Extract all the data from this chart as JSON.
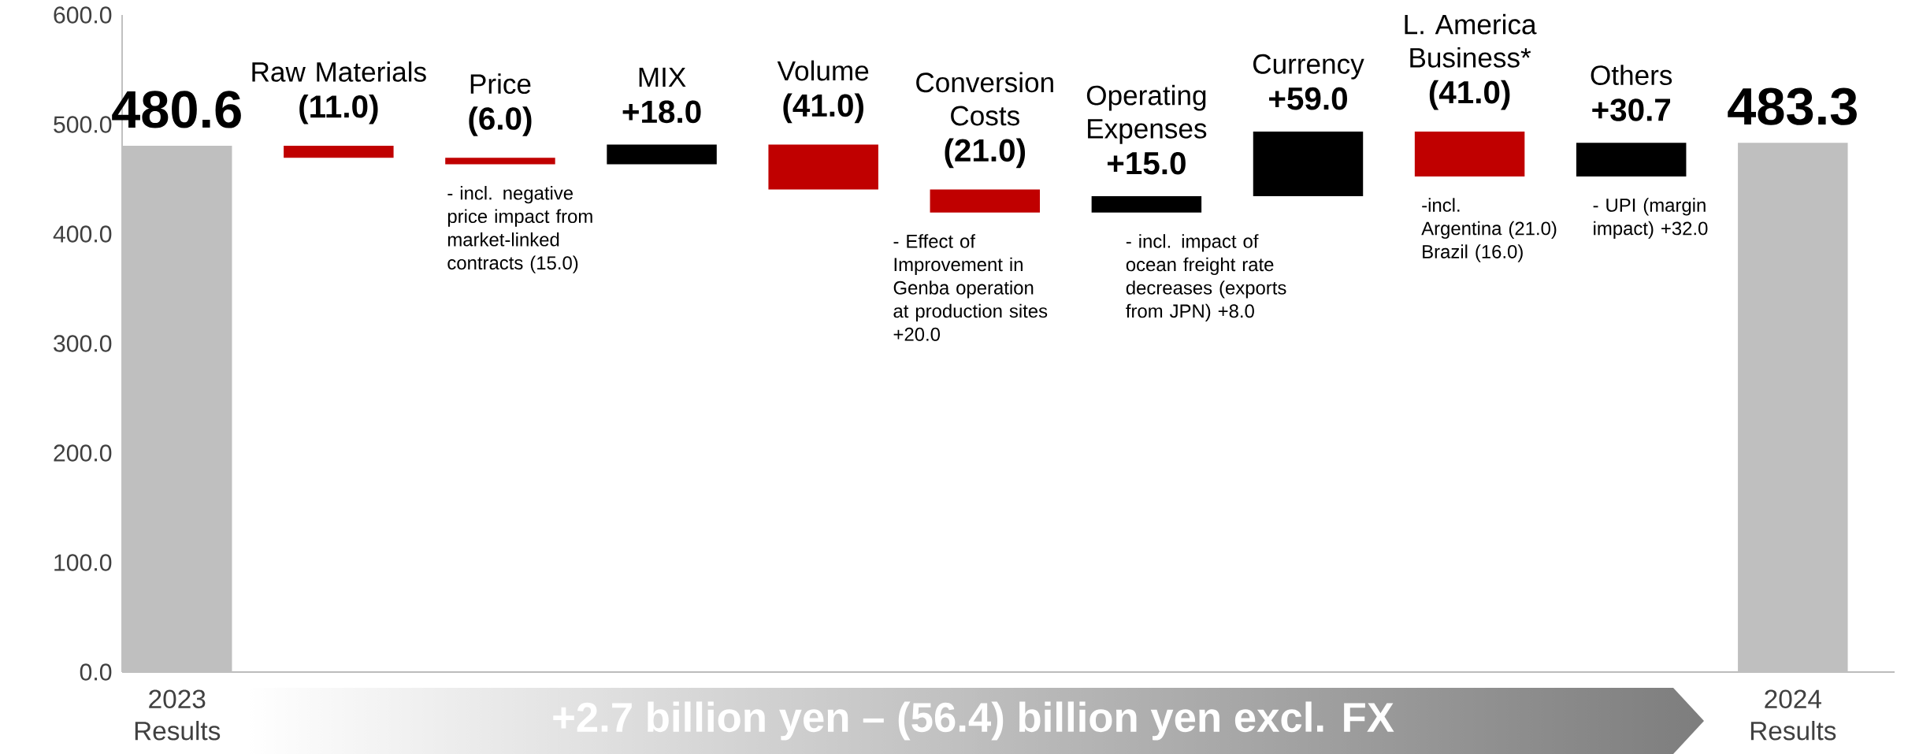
{
  "chart_data": {
    "type": "bar",
    "categories": [
      "2023 Results",
      "Raw Materials",
      "Price",
      "MIX",
      "Volume",
      "Conversion Costs",
      "Operating Expenses",
      "Currency",
      "L. America Business*",
      "Others",
      "2024 Results"
    ],
    "values": [
      480.6,
      -11.0,
      -6.0,
      18.0,
      -41.0,
      -21.0,
      15.0,
      59.0,
      -41.0,
      30.7,
      483.3
    ],
    "base": [
      0,
      480.6,
      469.6,
      463.6,
      481.6,
      440.6,
      419.6,
      434.6,
      493.6,
      452.6,
      0
    ],
    "value_labels": [
      "480.6",
      "(11.0)",
      "(6.0)",
      "+18.0",
      "(41.0)",
      "(21.0)",
      "+15.0",
      "+59.0",
      "(41.0)",
      "+30.7",
      "483.3"
    ],
    "colors": [
      "#bfbfbf",
      "#c00000",
      "#c00000",
      "#000000",
      "#c00000",
      "#c00000",
      "#000000",
      "#000000",
      "#c00000",
      "#000000",
      "#bfbfbf"
    ],
    "ylim": [
      0,
      600
    ],
    "yticks": [
      {
        "value": 0,
        "label": "0.0"
      },
      {
        "value": 100,
        "label": "100.0"
      },
      {
        "value": 200,
        "label": "200.0"
      },
      {
        "value": 300,
        "label": "300.0"
      },
      {
        "value": 400,
        "label": "400.0"
      },
      {
        "value": 500,
        "label": "500.0"
      },
      {
        "value": 600,
        "label": "600.0"
      }
    ],
    "annotations": [
      "- incl. negative price impact from market-linked contracts (15.0)",
      "- Effect of Improvement in Genba operation at production sites +20.0",
      "- incl. impact of ocean freight rate decreases (exports from JPN) +8.0",
      "-incl.",
      "Argentina (21.0)",
      "Brazil (16.0)",
      "- UPI (margin impact) +32.0",
      "+2.7 billion yen – (56.4) billion yen excl. FX"
    ]
  }
}
